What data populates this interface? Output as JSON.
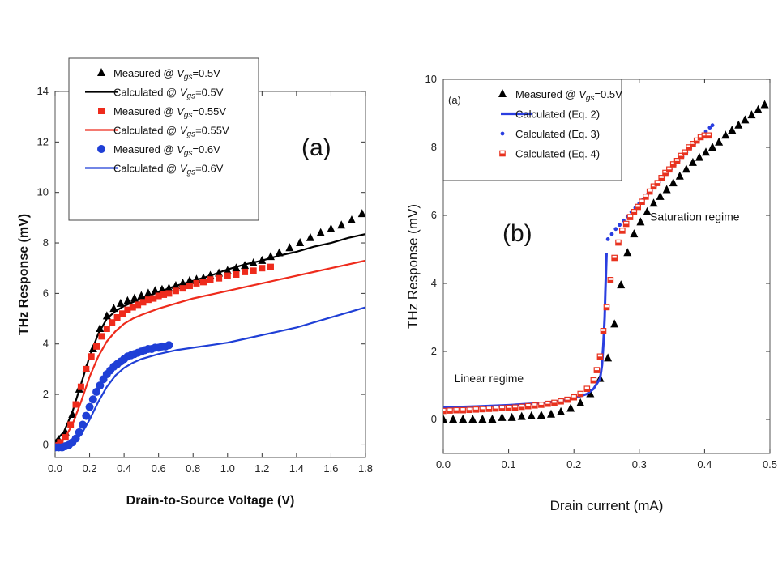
{
  "chart_data": [
    {
      "type": "scatter",
      "panel_label": "(a)",
      "xlabel": "Drain-to-Source Voltage (V)",
      "ylabel": "THz Response (mV)",
      "xlim": [
        0,
        1.8
      ],
      "ylim": [
        -0.5,
        14
      ],
      "xticks": [
        0,
        0.2,
        0.4,
        0.6,
        0.8,
        1.0,
        1.2,
        1.4,
        1.6,
        1.8
      ],
      "yticks": [
        0,
        2,
        4,
        6,
        8,
        10,
        12,
        14
      ],
      "legend_position": "top",
      "series": [
        {
          "name": "Measured @ V_gs=0.5V",
          "legend_parts": [
            "Measured @ ",
            "V",
            "gs",
            "=0.5V"
          ],
          "kind": "marker",
          "marker": "triangle",
          "color": "#000000",
          "x": [
            0.02,
            0.06,
            0.1,
            0.14,
            0.18,
            0.22,
            0.26,
            0.3,
            0.34,
            0.38,
            0.42,
            0.46,
            0.5,
            0.54,
            0.58,
            0.62,
            0.66,
            0.7,
            0.74,
            0.78,
            0.82,
            0.86,
            0.9,
            0.95,
            1.0,
            1.05,
            1.1,
            1.15,
            1.2,
            1.25,
            1.3,
            1.36,
            1.42,
            1.48,
            1.54,
            1.6,
            1.66,
            1.72,
            1.78
          ],
          "y": [
            0.2,
            0.5,
            1.2,
            2.2,
            3.0,
            3.8,
            4.6,
            5.1,
            5.4,
            5.6,
            5.7,
            5.8,
            5.9,
            6.0,
            6.1,
            6.15,
            6.2,
            6.3,
            6.4,
            6.5,
            6.55,
            6.6,
            6.7,
            6.8,
            6.9,
            7.0,
            7.1,
            7.2,
            7.3,
            7.45,
            7.6,
            7.8,
            8.0,
            8.2,
            8.4,
            8.55,
            8.7,
            8.9,
            9.15
          ]
        },
        {
          "name": "Calculated @ V_gs=0.5V",
          "legend_parts": [
            "Calculated @ ",
            "V",
            "gs",
            "=0.5V"
          ],
          "kind": "line",
          "color": "#000000",
          "x": [
            0,
            0.05,
            0.1,
            0.15,
            0.2,
            0.25,
            0.3,
            0.35,
            0.4,
            0.45,
            0.5,
            0.6,
            0.7,
            0.8,
            0.9,
            1.0,
            1.1,
            1.2,
            1.3,
            1.4,
            1.5,
            1.6,
            1.7,
            1.8
          ],
          "y": [
            0.15,
            0.5,
            1.3,
            2.4,
            3.5,
            4.4,
            5.0,
            5.3,
            5.5,
            5.65,
            5.8,
            6.05,
            6.3,
            6.5,
            6.7,
            6.95,
            7.15,
            7.3,
            7.5,
            7.65,
            7.85,
            8.0,
            8.2,
            8.35
          ]
        },
        {
          "name": "Measured @ V_gs=0.55V",
          "legend_parts": [
            "Measured @ ",
            "V",
            "gs",
            "=0.55V"
          ],
          "kind": "marker",
          "marker": "square",
          "color": "#ee2b1c",
          "x": [
            0.03,
            0.06,
            0.09,
            0.12,
            0.15,
            0.18,
            0.21,
            0.24,
            0.27,
            0.3,
            0.33,
            0.36,
            0.39,
            0.42,
            0.45,
            0.48,
            0.51,
            0.54,
            0.57,
            0.6,
            0.63,
            0.66,
            0.7,
            0.74,
            0.78,
            0.82,
            0.86,
            0.9,
            0.95,
            1.0,
            1.05,
            1.1,
            1.15,
            1.2,
            1.25
          ],
          "y": [
            0.1,
            0.3,
            0.8,
            1.6,
            2.3,
            3.0,
            3.5,
            3.9,
            4.3,
            4.6,
            4.85,
            5.05,
            5.2,
            5.35,
            5.45,
            5.55,
            5.65,
            5.75,
            5.8,
            5.9,
            5.95,
            6.0,
            6.1,
            6.2,
            6.3,
            6.4,
            6.45,
            6.55,
            6.6,
            6.7,
            6.75,
            6.85,
            6.9,
            7.0,
            7.05
          ]
        },
        {
          "name": "Calculated @ V_gs=0.55V",
          "legend_parts": [
            "Calculated  @ ",
            "V",
            "gs",
            "=0.55V"
          ],
          "kind": "line",
          "color": "#ee2b1c",
          "x": [
            0,
            0.05,
            0.1,
            0.15,
            0.2,
            0.25,
            0.3,
            0.35,
            0.4,
            0.45,
            0.5,
            0.6,
            0.7,
            0.8,
            0.9,
            1.0,
            1.1,
            1.2,
            1.3,
            1.4,
            1.5,
            1.6,
            1.7,
            1.8
          ],
          "y": [
            0.05,
            0.2,
            0.8,
            1.7,
            2.7,
            3.5,
            4.1,
            4.5,
            4.8,
            5.0,
            5.15,
            5.4,
            5.6,
            5.8,
            5.95,
            6.1,
            6.25,
            6.4,
            6.55,
            6.7,
            6.85,
            7.0,
            7.15,
            7.3
          ]
        },
        {
          "name": "Measured @ V_gs=0.6V",
          "legend_parts": [
            "Measured @ ",
            "V",
            "gs",
            "=0.6V"
          ],
          "kind": "marker",
          "marker": "circle",
          "color": "#1f3fd6",
          "x": [
            0.0,
            0.02,
            0.04,
            0.06,
            0.08,
            0.1,
            0.12,
            0.14,
            0.16,
            0.18,
            0.2,
            0.22,
            0.24,
            0.26,
            0.28,
            0.3,
            0.32,
            0.34,
            0.36,
            0.38,
            0.4,
            0.42,
            0.44,
            0.46,
            0.48,
            0.5,
            0.52,
            0.54,
            0.56,
            0.58,
            0.6,
            0.62,
            0.64,
            0.66
          ],
          "y": [
            -0.1,
            -0.1,
            -0.1,
            -0.05,
            0.0,
            0.1,
            0.25,
            0.5,
            0.8,
            1.15,
            1.5,
            1.8,
            2.1,
            2.35,
            2.6,
            2.8,
            2.95,
            3.1,
            3.2,
            3.3,
            3.4,
            3.5,
            3.55,
            3.6,
            3.65,
            3.7,
            3.75,
            3.8,
            3.8,
            3.85,
            3.85,
            3.9,
            3.9,
            3.95
          ]
        },
        {
          "name": "Calculated @ V_gs=0.6V",
          "legend_parts": [
            "Calculated  @ ",
            "V",
            "gs",
            "=0.6V"
          ],
          "kind": "line",
          "color": "#1f3fd6",
          "x": [
            0,
            0.05,
            0.1,
            0.15,
            0.2,
            0.25,
            0.3,
            0.35,
            0.4,
            0.45,
            0.5,
            0.6,
            0.7,
            0.8,
            0.9,
            1.0,
            1.1,
            1.2,
            1.3,
            1.4,
            1.5,
            1.6,
            1.7,
            1.8
          ],
          "y": [
            -0.1,
            -0.08,
            0.05,
            0.4,
            1.0,
            1.7,
            2.3,
            2.75,
            3.05,
            3.25,
            3.4,
            3.6,
            3.75,
            3.85,
            3.95,
            4.05,
            4.2,
            4.35,
            4.5,
            4.65,
            4.85,
            5.05,
            5.25,
            5.45
          ]
        }
      ]
    },
    {
      "type": "scatter",
      "panel_label": "(b)",
      "corner_label": "(a)",
      "xlabel": "Drain current  (mA)",
      "ylabel": "THz Response (mV)",
      "xlim": [
        0,
        0.5
      ],
      "ylim": [
        -1,
        10
      ],
      "xticks": [
        0.0,
        0.1,
        0.2,
        0.3,
        0.4,
        0.5
      ],
      "yticks": [
        0,
        2,
        4,
        6,
        8,
        10
      ],
      "legend_position": "top-left",
      "annotations": [
        {
          "text": "Linear regime",
          "x": 0.07,
          "y": 1.1
        },
        {
          "text": "Saturation regime",
          "x": 0.385,
          "y": 5.85
        }
      ],
      "series": [
        {
          "name": "Measured @ V_gs=0.5V",
          "legend_parts": [
            "Measured @ ",
            "V",
            "gs",
            "=0.5V"
          ],
          "kind": "marker",
          "marker": "triangle",
          "color": "#000000",
          "x": [
            0.0,
            0.015,
            0.03,
            0.045,
            0.06,
            0.075,
            0.09,
            0.105,
            0.12,
            0.135,
            0.15,
            0.165,
            0.18,
            0.195,
            0.21,
            0.225,
            0.24,
            0.252,
            0.262,
            0.272,
            0.282,
            0.292,
            0.302,
            0.312,
            0.322,
            0.332,
            0.342,
            0.352,
            0.362,
            0.372,
            0.382,
            0.392,
            0.402,
            0.412,
            0.422,
            0.432,
            0.442,
            0.452,
            0.462,
            0.472,
            0.482,
            0.492
          ],
          "y": [
            0.0,
            0.0,
            0.0,
            0.0,
            0.0,
            0.0,
            0.05,
            0.05,
            0.08,
            0.1,
            0.12,
            0.15,
            0.22,
            0.32,
            0.48,
            0.75,
            1.2,
            1.8,
            2.8,
            3.95,
            4.9,
            5.45,
            5.8,
            6.1,
            6.35,
            6.55,
            6.75,
            6.95,
            7.15,
            7.35,
            7.55,
            7.7,
            7.85,
            8.0,
            8.15,
            8.35,
            8.5,
            8.65,
            8.8,
            8.95,
            9.1,
            9.25
          ]
        },
        {
          "name": "Calculated (Eq. 2)",
          "legend_parts": [
            "Calculated (Eq. 2)"
          ],
          "kind": "line",
          "color": "#2a3ee0",
          "x": [
            0,
            0.05,
            0.1,
            0.15,
            0.18,
            0.2,
            0.22,
            0.23,
            0.24,
            0.243,
            0.245,
            0.247,
            0.248,
            0.249,
            0.25
          ],
          "y": [
            0.35,
            0.38,
            0.42,
            0.48,
            0.55,
            0.62,
            0.75,
            0.9,
            1.2,
            1.6,
            2.2,
            3.0,
            3.7,
            4.3,
            4.9
          ]
        },
        {
          "name": "Calculated (Eq. 3)",
          "legend_parts": [
            "Calculated (Eq. 3)"
          ],
          "kind": "marker",
          "marker": "dot",
          "color": "#2a3ee0",
          "x": [
            0.252,
            0.258,
            0.264,
            0.27,
            0.276,
            0.282,
            0.288,
            0.294,
            0.3,
            0.306,
            0.312,
            0.318,
            0.324,
            0.33,
            0.336,
            0.342,
            0.348,
            0.354,
            0.36,
            0.366,
            0.372,
            0.378,
            0.384,
            0.39,
            0.396,
            0.402,
            0.408,
            0.412
          ],
          "y": [
            5.3,
            5.45,
            5.6,
            5.72,
            5.85,
            5.97,
            6.1,
            6.22,
            6.35,
            6.47,
            6.6,
            6.72,
            6.85,
            6.97,
            7.1,
            7.22,
            7.35,
            7.47,
            7.6,
            7.72,
            7.85,
            7.97,
            8.1,
            8.22,
            8.35,
            8.47,
            8.58,
            8.65
          ]
        },
        {
          "name": "Calculated (Eq. 4)",
          "legend_parts": [
            "Calculated (Eq. 4)"
          ],
          "kind": "marker",
          "marker": "hsquare",
          "color": "#e8321f",
          "x": [
            0.0,
            0.01,
            0.02,
            0.03,
            0.04,
            0.05,
            0.06,
            0.07,
            0.08,
            0.09,
            0.1,
            0.11,
            0.12,
            0.13,
            0.14,
            0.15,
            0.16,
            0.17,
            0.18,
            0.19,
            0.2,
            0.21,
            0.22,
            0.23,
            0.235,
            0.24,
            0.245,
            0.25,
            0.256,
            0.262,
            0.268,
            0.274,
            0.28,
            0.286,
            0.292,
            0.298,
            0.304,
            0.31,
            0.316,
            0.322,
            0.328,
            0.334,
            0.34,
            0.346,
            0.352,
            0.358,
            0.364,
            0.37,
            0.376,
            0.382,
            0.388,
            0.394,
            0.4,
            0.406
          ],
          "y": [
            0.25,
            0.26,
            0.27,
            0.27,
            0.28,
            0.29,
            0.3,
            0.31,
            0.32,
            0.33,
            0.34,
            0.35,
            0.37,
            0.39,
            0.41,
            0.43,
            0.46,
            0.49,
            0.53,
            0.58,
            0.65,
            0.75,
            0.9,
            1.15,
            1.45,
            1.85,
            2.6,
            3.3,
            4.1,
            4.75,
            5.2,
            5.55,
            5.75,
            5.95,
            6.1,
            6.25,
            6.4,
            6.55,
            6.7,
            6.85,
            6.95,
            7.1,
            7.25,
            7.35,
            7.5,
            7.6,
            7.75,
            7.85,
            8.0,
            8.1,
            8.2,
            8.3,
            8.35,
            8.35
          ]
        }
      ]
    }
  ]
}
